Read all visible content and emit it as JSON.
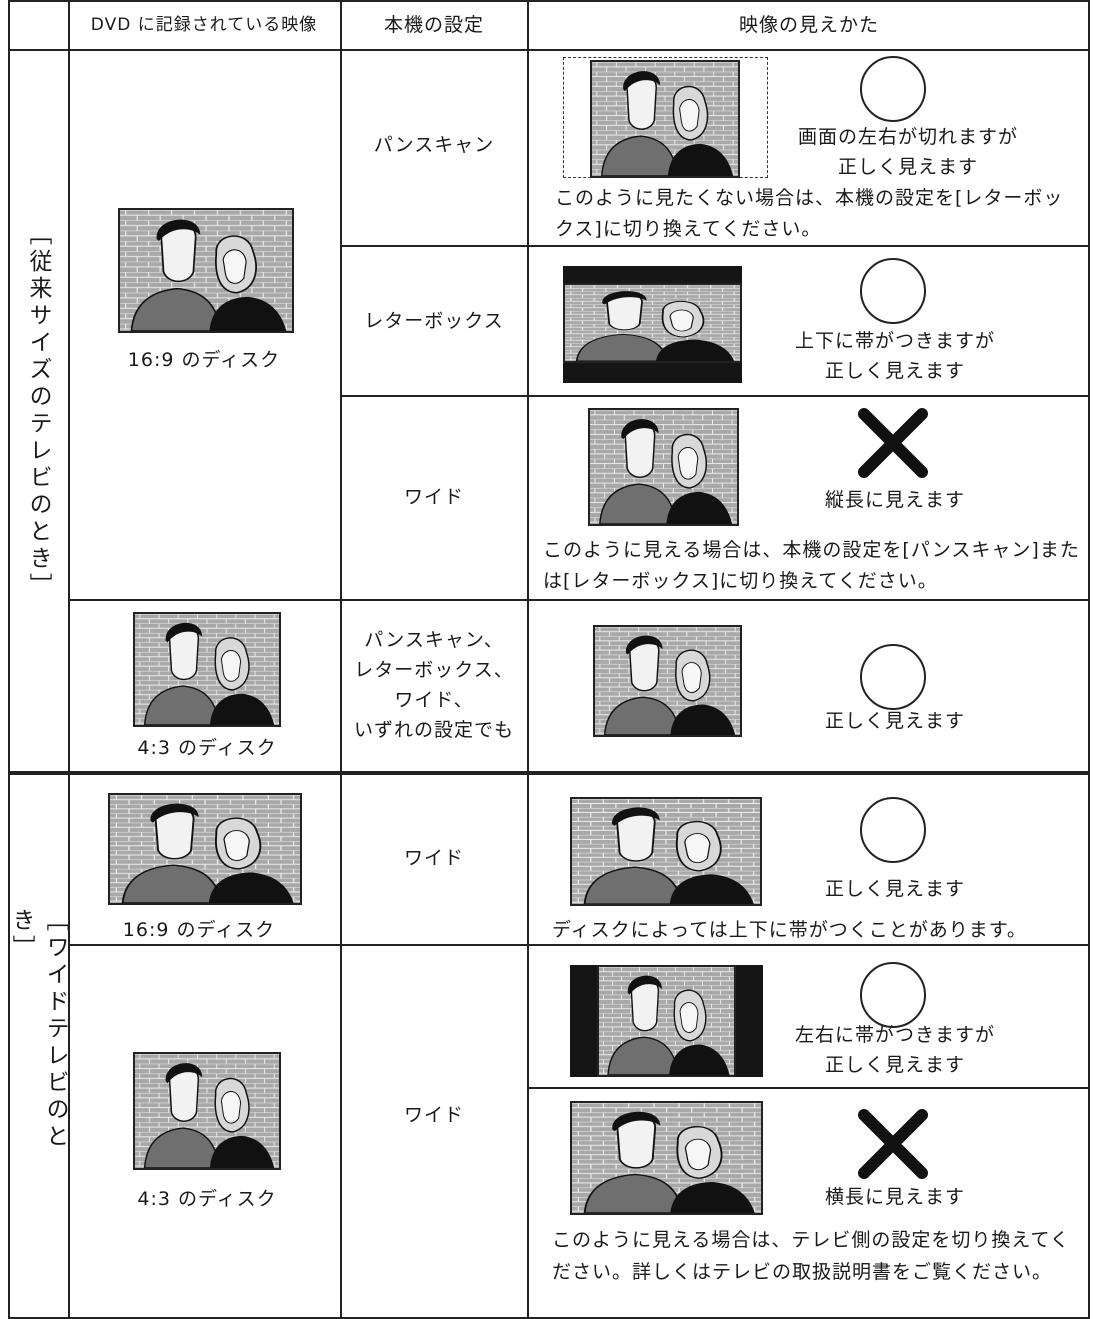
{
  "header": {
    "columns": [
      "DVD に記録されている映像",
      "本機の設定",
      "映像の見えかた"
    ]
  },
  "sections": [
    {
      "label": "［従来サイズのテレビのとき］",
      "rows": [
        {
          "disc": "16:9 のディスク",
          "settings": [
            {
              "setting": [
                "パンスキャン"
              ],
              "result": [
                "画面の左右が切れますが",
                "正しく見えます"
              ],
              "note": "このように見たくない場合は、本機の設定を[レターボックス]に切り換えてください。"
            },
            {
              "setting": [
                "レターボックス"
              ],
              "result": [
                "上下に帯がつきますが",
                "正しく見えます"
              ]
            },
            {
              "setting": [
                "ワイド"
              ],
              "result": [
                "縦長に見えます"
              ],
              "note": "このように見える場合は、本機の設定を[パンスキャン]または[レターボックス]に切り換えてください。"
            }
          ]
        },
        {
          "disc": "4:3 のディスク",
          "settings": [
            {
              "setting": [
                "パンスキャン、",
                "レターボックス、",
                "ワイド、",
                "いずれの設定でも"
              ],
              "result": [
                "正しく見えます"
              ]
            }
          ]
        }
      ]
    },
    {
      "label": "［ワイドテレビのとき］",
      "rows": [
        {
          "disc": "16:9 のディスク",
          "settings": [
            {
              "setting": [
                "ワイド"
              ],
              "result": [
                "正しく見えます"
              ],
              "note": "ディスクによっては上下に帯がつくことがあります。"
            }
          ]
        },
        {
          "disc": "4:3 のディスク",
          "setting": [
            "ワイド"
          ],
          "results": [
            {
              "result": [
                "左右に帯がつきますが",
                "正しく見えます"
              ]
            },
            {
              "result": [
                "横長に見えます"
              ],
              "note": "このように見える場合は、テレビ側の設定を切り換えてください。詳しくはテレビの取扱説明書をご覧ください。"
            }
          ]
        }
      ]
    }
  ]
}
